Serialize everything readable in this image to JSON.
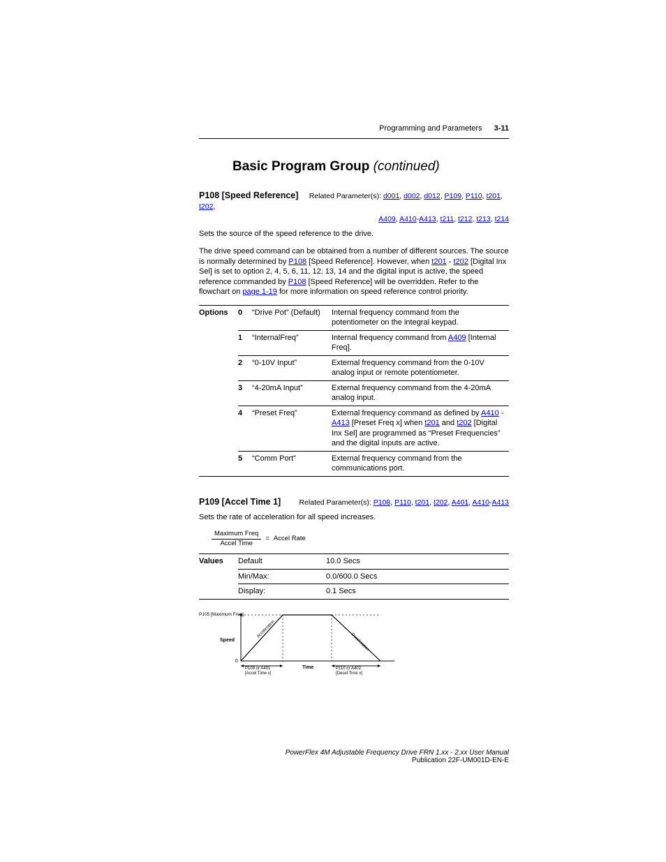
{
  "header": {
    "section": "Programming and Parameters",
    "pageNumber": "3-11"
  },
  "title": {
    "main": "Basic Program Group",
    "cont": "(continued)"
  },
  "p108": {
    "name": "P108 [Speed Reference]",
    "relatedLead": "Related Parameter(s): ",
    "links1": [
      "d001",
      "d002",
      "d012",
      "P109",
      "P110",
      "t201",
      "t202"
    ],
    "links2a": "A409",
    "links2b": "A410",
    "links2c": "A413",
    "links2rest": [
      "t211",
      "t212",
      "t213",
      "t214"
    ],
    "desc1": "Sets the source of the speed reference to the drive.",
    "desc2a": "The drive speed command can be obtained from a number of different sources. The source is normally determined by ",
    "desc2_link1": "P108",
    "desc2b": " [Speed Reference]. However, when ",
    "desc2_link2": "t201",
    "desc2c": " - ",
    "desc2_link3": "t202",
    "desc2d": " [Digital Inx Sel] is set to option 2, 4, 5, 6, 11, 12, 13, 14 and the digital input is active, the speed reference commanded by ",
    "desc2_link4": "P108",
    "desc2e": " [Speed Reference] will be overridden. Refer to the flowchart on ",
    "desc2_link5": "page 1-19",
    "desc2f": " for more information on speed reference control priority.",
    "optionsLabel": "Options",
    "options": [
      {
        "n": "0",
        "name": "“Drive Pot” (Default)",
        "expl_plain": "Internal frequency command from the potentiometer on the integral keypad."
      },
      {
        "n": "1",
        "name": "“InternalFreq”",
        "expl_pre": "Internal frequency command from ",
        "expl_link": "A409",
        "expl_post": " [Internal Freq]."
      },
      {
        "n": "2",
        "name": "“0-10V Input”",
        "expl_plain": "External frequency command from the 0-10V analog input or remote potentiometer."
      },
      {
        "n": "3",
        "name": "“4-20mA Input”",
        "expl_plain": "External frequency command from the 4-20mA analog input."
      },
      {
        "n": "4",
        "name": "“Preset Freq”",
        "expl_pre": "External frequency command as defined by ",
        "expl_link": "A410",
        "expl_mid1": " - ",
        "expl_link2": "A413",
        "expl_mid2": " [Preset Freq x] when ",
        "expl_link3": "t201",
        "expl_mid3": " and ",
        "expl_link4": "t202",
        "expl_post": " [Digital Inx Sel] are programmed as “Preset Frequencies” and the digital inputs are active."
      },
      {
        "n": "5",
        "name": "“Comm Port”",
        "expl_plain": "External frequency command from the communications port."
      }
    ]
  },
  "p109": {
    "name": "P109 [Accel Time 1]",
    "relatedLead": "Related Parameter(s): ",
    "links": [
      "P108",
      "P110",
      "t201",
      "t202",
      "A401"
    ],
    "linkRangeA": "A410",
    "linkRangeB": "A413",
    "desc": "Sets the rate of acceleration for all speed increases.",
    "formula": {
      "top": "Maximum Freq",
      "bottom": "Accel Time",
      "rhs": "Accel Rate"
    },
    "valuesLabel": "Values",
    "rows": [
      {
        "k": "Default",
        "v": "10.0 Secs"
      },
      {
        "k": "Min/Max:",
        "v": "0.0/600.0 Secs"
      },
      {
        "k": "Display:",
        "v": "0.1 Secs"
      }
    ],
    "diagram": {
      "ylabel": "Speed",
      "xlabel": "Time",
      "topLabel": "P105 [Maximum Freq]",
      "zero": "0",
      "accelText": "Acceleration",
      "decelText": "Deceleration",
      "leftBracket1": "P109 or A401",
      "leftBracket2": "[Accel Time x]",
      "rightBracket1": "P110 or A402",
      "rightBracket2": "[Decel Time x]"
    }
  },
  "footer": {
    "t1": "PowerFlex 4M Adjustable Frequency Drive FRN 1.xx - 2.xx User Manual",
    "t2": "Publication 22F-UM001D-EN-E"
  }
}
